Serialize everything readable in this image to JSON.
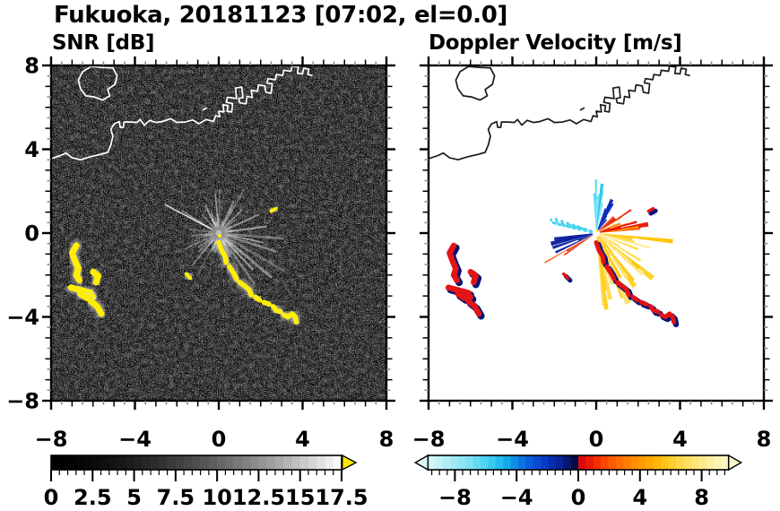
{
  "title": "Fukuoka, 20181123 [07:02, el=0.0]",
  "panels": [
    {
      "key": "snr",
      "subtitle": "SNR [dB]",
      "bg": "#000000",
      "coast": "#ffffff"
    },
    {
      "key": "vel",
      "subtitle": "Doppler Velocity [m/s]",
      "bg": "#ffffff",
      "coast": "#1a1a1a"
    }
  ],
  "axis": {
    "range": [
      -8,
      8
    ],
    "major": [
      -8,
      -4,
      0,
      4,
      8
    ],
    "x_labels": [
      "−8",
      "−4",
      "0",
      "4",
      "8"
    ],
    "y_labels": [
      "8",
      "4",
      "0",
      "−4",
      "−8"
    ],
    "y_label_values": [
      8,
      4,
      0,
      -4,
      -8
    ],
    "minor_step": 0.5
  },
  "colorbar_snr": {
    "min": 0,
    "max": 17.5,
    "tick_values": [
      0,
      2.5,
      5,
      7.5,
      10,
      12.5,
      15,
      17.5
    ],
    "tick_labels": [
      "0",
      "2.5",
      "5",
      "7.5",
      "10",
      "12.5",
      "15",
      "17.5"
    ],
    "gamma": 1.7,
    "overflow_color": "#ffe800"
  },
  "colorbar_vel": {
    "min": -9.75,
    "max": 9.75,
    "tick_values": [
      -8,
      -4,
      0,
      4,
      8
    ],
    "tick_labels": [
      "−8",
      "−4",
      "0",
      "4",
      "8"
    ],
    "neg_stops": [
      [
        -9.75,
        "#dbf8f8"
      ],
      [
        -8.5,
        "#b0edf5"
      ],
      [
        -7,
        "#7ce0f3"
      ],
      [
        -5.75,
        "#3ecff2"
      ],
      [
        -4.75,
        "#17aeec"
      ],
      [
        -4,
        "#0e86e4"
      ],
      [
        -3.2,
        "#0b5edd"
      ],
      [
        -2.4,
        "#0a42cb"
      ],
      [
        -1.7,
        "#082daf"
      ],
      [
        -1,
        "#071e8c"
      ],
      [
        -0.5,
        "#05125e"
      ],
      [
        -0.02,
        "#030829"
      ]
    ],
    "pos_stops": [
      [
        0.02,
        "#d60010"
      ],
      [
        0.8,
        "#eb1c00"
      ],
      [
        1.6,
        "#fa4300"
      ],
      [
        2.6,
        "#ff6a00"
      ],
      [
        3.6,
        "#ff8c00"
      ],
      [
        4.6,
        "#ffa800"
      ],
      [
        5.6,
        "#ffc315"
      ],
      [
        6.6,
        "#ffd84a"
      ],
      [
        7.6,
        "#ffe578"
      ],
      [
        8.6,
        "#fff0a2"
      ],
      [
        9.75,
        "#fff8cb"
      ]
    ],
    "left_arrow_color": "#dbf8f8",
    "right_arrow_color": "#fff8cb"
  },
  "chart_data": {
    "type": "heatmap",
    "description": "Dual-panel Doppler radar PPI for Fukuoka, 2018-11-23 07:02, elevation 0.0 deg. Left: SNR in dB (grayscale 0-17.5, yellow = overflow). Right: Doppler velocity in m/s (cyan/blue = negative, red/yellow = positive). Radar at origin, axes in km.",
    "x_range": [
      -8,
      8
    ],
    "y_range": [
      -8,
      8
    ],
    "radar_center": [
      0,
      0
    ],
    "coast": {
      "island": [
        [
          -6.1,
          7.95
        ],
        [
          -5.5,
          7.9
        ],
        [
          -5.05,
          7.88
        ],
        [
          -4.85,
          7.5
        ],
        [
          -4.95,
          7.1
        ],
        [
          -5.3,
          6.85
        ],
        [
          -5.2,
          6.55
        ],
        [
          -5.55,
          6.35
        ],
        [
          -5.95,
          6.5
        ],
        [
          -6.35,
          6.55
        ],
        [
          -6.6,
          6.9
        ],
        [
          -6.7,
          7.3
        ],
        [
          -6.5,
          7.7
        ]
      ],
      "main": [
        [
          -8,
          3.55
        ],
        [
          -7.55,
          3.7
        ],
        [
          -7.3,
          3.82
        ],
        [
          -7.0,
          3.6
        ],
        [
          -6.6,
          3.5
        ],
        [
          -6.1,
          3.65
        ],
        [
          -5.65,
          3.75
        ],
        [
          -5.3,
          3.85
        ],
        [
          -5.15,
          4.2
        ],
        [
          -5.05,
          4.62
        ],
        [
          -5.15,
          4.95
        ],
        [
          -5.0,
          5.2
        ],
        [
          -4.75,
          5.32
        ],
        [
          -4.7,
          5.05
        ],
        [
          -4.55,
          5.05
        ],
        [
          -4.52,
          5.3
        ],
        [
          -4.2,
          5.3
        ],
        [
          -3.9,
          5.28
        ],
        [
          -3.75,
          5.42
        ],
        [
          -3.55,
          5.15
        ],
        [
          -3.3,
          5.38
        ],
        [
          -3.0,
          5.28
        ],
        [
          -2.7,
          5.32
        ],
        [
          -2.3,
          5.46
        ],
        [
          -2.0,
          5.28
        ],
        [
          -1.6,
          5.3
        ],
        [
          -1.25,
          5.4
        ],
        [
          -0.95,
          5.22
        ],
        [
          -0.6,
          5.42
        ],
        [
          -0.25,
          5.32
        ],
        [
          -0.15,
          5.6
        ],
        [
          0.05,
          5.55
        ],
        [
          0.0,
          5.82
        ],
        [
          0.25,
          5.78
        ],
        [
          0.2,
          6.12
        ],
        [
          0.45,
          6.08
        ],
        [
          0.4,
          5.82
        ],
        [
          0.62,
          5.78
        ],
        [
          0.66,
          6.18
        ],
        [
          0.36,
          6.24
        ],
        [
          0.42,
          6.48
        ],
        [
          0.85,
          6.42
        ],
        [
          0.8,
          6.92
        ],
        [
          1.1,
          6.97
        ],
        [
          1.15,
          6.47
        ],
        [
          0.95,
          6.42
        ],
        [
          1.0,
          6.22
        ],
        [
          1.3,
          6.17
        ],
        [
          1.35,
          6.52
        ],
        [
          1.6,
          6.47
        ],
        [
          1.55,
          6.82
        ],
        [
          1.85,
          6.77
        ],
        [
          1.9,
          7.07
        ],
        [
          2.2,
          7.02
        ],
        [
          2.25,
          6.72
        ],
        [
          2.5,
          6.67
        ],
        [
          2.55,
          7.12
        ],
        [
          2.3,
          7.17
        ],
        [
          2.35,
          7.37
        ],
        [
          2.7,
          7.32
        ],
        [
          2.75,
          7.57
        ],
        [
          3.05,
          7.52
        ],
        [
          3.1,
          7.77
        ],
        [
          3.45,
          7.72
        ],
        [
          3.5,
          7.97
        ],
        [
          3.8,
          7.92
        ],
        [
          3.75,
          7.62
        ],
        [
          4.0,
          7.6
        ],
        [
          4.05,
          7.87
        ],
        [
          4.3,
          7.82
        ],
        [
          4.25,
          7.57
        ],
        [
          4.45,
          7.52
        ]
      ],
      "dash": [
        [
          -0.75,
          5.88
        ],
        [
          -0.58,
          5.97
        ]
      ]
    },
    "echo_chain": [
      [
        [
          0.0,
          -0.45
        ],
        [
          0.12,
          -0.8
        ],
        [
          0.3,
          -1.1
        ],
        [
          0.35,
          -1.4
        ]
      ],
      [
        [
          0.5,
          -1.6
        ],
        [
          0.7,
          -1.9
        ],
        [
          0.85,
          -2.2
        ]
      ],
      [
        [
          1.0,
          -2.35
        ],
        [
          1.2,
          -2.5
        ],
        [
          1.45,
          -2.7
        ],
        [
          1.55,
          -2.95
        ]
      ],
      [
        [
          1.75,
          -3.05
        ],
        [
          1.95,
          -3.2
        ]
      ],
      [
        [
          2.15,
          -3.3
        ],
        [
          2.4,
          -3.4
        ]
      ],
      [
        [
          2.6,
          -3.5
        ],
        [
          2.75,
          -3.7
        ],
        [
          2.95,
          -3.75
        ]
      ],
      [
        [
          3.1,
          -3.9
        ],
        [
          3.3,
          -4.0
        ],
        [
          3.5,
          -3.85
        ],
        [
          3.65,
          -4.0
        ],
        [
          3.7,
          -4.25
        ]
      ]
    ],
    "west_clusters": [
      [
        [
          -6.8,
          -0.6
        ],
        [
          -7.0,
          -0.95
        ],
        [
          -6.85,
          -1.35
        ],
        [
          -6.7,
          -1.7
        ],
        [
          -6.8,
          -2.0
        ],
        [
          -6.65,
          -2.25
        ]
      ],
      [
        [
          -6.0,
          -1.85
        ],
        [
          -5.75,
          -2.05
        ],
        [
          -5.85,
          -2.35
        ]
      ],
      [
        [
          -7.05,
          -2.6
        ],
        [
          -6.1,
          -2.85
        ]
      ],
      [
        [
          -6.6,
          -2.9
        ],
        [
          -6.3,
          -3.1
        ],
        [
          -6.0,
          -3.05
        ]
      ],
      [
        [
          -6.1,
          -3.25
        ],
        [
          -5.8,
          -3.5
        ],
        [
          -5.6,
          -3.85
        ]
      ]
    ],
    "small_echo": [
      [
        -1.55,
        -1.95
      ],
      [
        -1.35,
        -2.15
      ]
    ],
    "speck_ne": [
      [
        2.5,
        1.05
      ],
      [
        2.72,
        1.17
      ]
    ],
    "snr": {
      "spokes": {
        "seed": 9,
        "count": 90,
        "len": [
          0.35,
          2.7
        ],
        "opacity": [
          0.06,
          0.38
        ]
      },
      "bright_rays": [
        {
          "a": 152,
          "l": 2.9,
          "o": 0.9,
          "w": 1.3
        },
        {
          "a": 149,
          "l": 2.1,
          "o": 0.5,
          "w": 1
        },
        {
          "a": 8,
          "l": 2.3,
          "o": 0.5,
          "w": 2
        },
        {
          "a": -18,
          "l": 2.9,
          "o": 0.38,
          "w": 2.6
        },
        {
          "a": -40,
          "l": 3.3,
          "o": 0.4,
          "w": 3
        },
        {
          "a": -55,
          "l": 3.0,
          "o": 0.32,
          "w": 3
        },
        {
          "a": -5,
          "l": 3.1,
          "o": 0.34,
          "w": 2.4
        },
        {
          "a": 25,
          "l": 2.1,
          "o": 0.45,
          "w": 2
        },
        {
          "a": 45,
          "l": 1.6,
          "o": 0.4,
          "w": 2
        },
        {
          "a": 65,
          "l": 1.7,
          "o": 0.42,
          "w": 2
        },
        {
          "a": 95,
          "l": 1.9,
          "o": 0.5,
          "w": 1.6
        },
        {
          "a": 115,
          "l": 1.5,
          "o": 0.42,
          "w": 1.6
        },
        {
          "a": 132,
          "l": 1.2,
          "o": 0.4,
          "w": 1.4
        },
        {
          "a": 185,
          "l": 1.3,
          "o": 0.4,
          "w": 1.6
        },
        {
          "a": 205,
          "l": 1.8,
          "o": 0.3,
          "w": 2
        },
        {
          "a": 222,
          "l": 1.3,
          "o": 0.3,
          "w": 2
        },
        {
          "a": -70,
          "l": 2.3,
          "o": 0.3,
          "w": 2.6
        },
        {
          "a": -30,
          "l": 3.6,
          "o": 0.25,
          "w": 3
        },
        {
          "a": -47,
          "l": 2.4,
          "o": 0.5,
          "w": 2
        },
        {
          "a": -12,
          "l": 2.2,
          "o": 0.5,
          "w": 1.6
        }
      ],
      "center_glow_color": "#8a8a8a",
      "echo_color": "#ffee00",
      "echo_halo": "#d8d8d8"
    },
    "velocity": {
      "fans": [
        {
          "name": "cyan-up",
          "a0": 74,
          "a1": 96,
          "n": 10,
          "l0": 0.9,
          "l1": 2.6,
          "hw": 1.6,
          "colors": [
            "#55d8f2",
            "#7fe4f6",
            "#2cc4ee"
          ],
          "seed": 11
        },
        {
          "name": "cyan-dots",
          "a0": 160,
          "a1": 172,
          "n": 14,
          "l0": 0.7,
          "l1": 2.4,
          "hw": 0.5,
          "colors": [
            "#4fd4f0"
          ],
          "seed": 12,
          "dots": true
        },
        {
          "name": "blue-upper",
          "a0": 52,
          "a1": 75,
          "n": 9,
          "l0": 0.7,
          "l1": 1.9,
          "hw": 2.2,
          "colors": [
            "#0c2fc4",
            "#0a23a0",
            "#1240dd"
          ],
          "seed": 13
        },
        {
          "name": "navy-left",
          "a0": 183,
          "a1": 207,
          "n": 7,
          "l0": 0.9,
          "l1": 2.3,
          "hw": 2.4,
          "colors": [
            "#0a1f9e",
            "#081a86"
          ],
          "seed": 14
        },
        {
          "name": "red-right",
          "a0": 5,
          "a1": 52,
          "n": 16,
          "l0": 0.6,
          "l1": 2.6,
          "hw": 2.0,
          "colors": [
            "#ee2a00",
            "#ff5c00",
            "#ff7d00",
            "#ff9d00",
            "#e81000"
          ],
          "seed": 15
        },
        {
          "name": "orange-downleft",
          "a0": 208,
          "a1": 218,
          "n": 3,
          "l0": 1.6,
          "l1": 2.9,
          "hw": 1.2,
          "colors": [
            "#ff5500",
            "#e42300"
          ],
          "seed": 16
        },
        {
          "name": "yellow-fan",
          "a0": 275,
          "a1": 354,
          "n": 44,
          "l0": 0.7,
          "l1": 3.9,
          "hw": 1.8,
          "colors": [
            "#ffcf1e",
            "#ffdb4d",
            "#ffe272",
            "#ffc300",
            "#ffe98f"
          ],
          "seed": 17
        }
      ],
      "echo_main": "#e41414",
      "echo_shadow": "#001577",
      "center_hole": "#ffffff"
    }
  }
}
